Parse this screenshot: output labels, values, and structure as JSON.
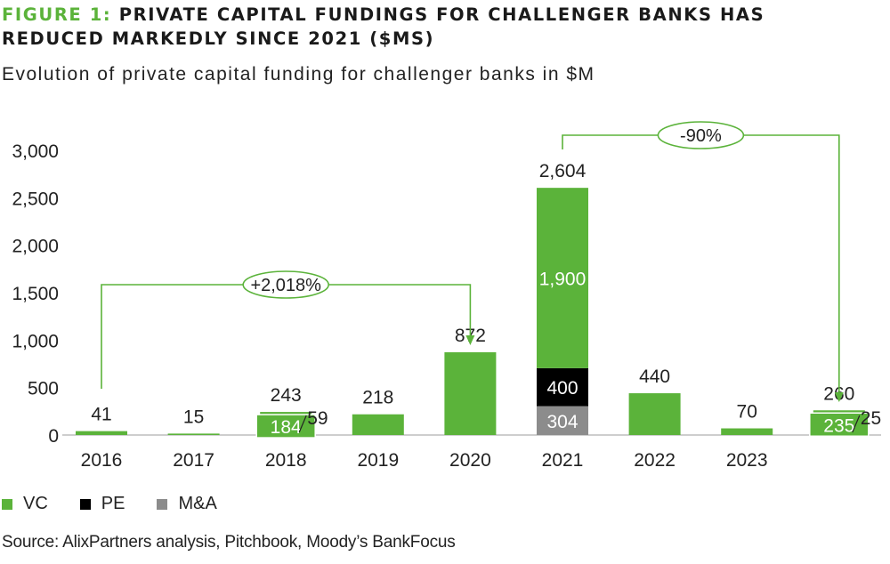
{
  "title": {
    "figure_label": "FIGURE 1:",
    "line1": "PRIVATE CAPITAL FUNDINGS FOR CHALLENGER BANKS HAS",
    "line2": "REDUCED MARKEDLY SINCE 2021 ($MS)"
  },
  "subtitle": "Evolution of private capital funding for challenger banks in $M",
  "source": "Source: AlixPartners analysis, Pitchbook, Moody’s BankFocus",
  "colors": {
    "vc": "#5bb33a",
    "pe": "#000000",
    "ma": "#8c8c8c",
    "accent": "#5bb33a"
  },
  "legend": [
    {
      "key": "vc",
      "label": "VC"
    },
    {
      "key": "pe",
      "label": "PE"
    },
    {
      "key": "ma",
      "label": "M&A"
    }
  ],
  "chart_data": {
    "type": "bar",
    "stacked": true,
    "categories": [
      "2016",
      "2017",
      "2018",
      "2019",
      "2020",
      "2021",
      "2022",
      "2023",
      ""
    ],
    "series": [
      {
        "name": "M&A",
        "key": "ma",
        "values": [
          0,
          0,
          0,
          0,
          0,
          304,
          0,
          0,
          0
        ]
      },
      {
        "name": "PE",
        "key": "pe",
        "values": [
          0,
          0,
          59,
          0,
          0,
          400,
          0,
          0,
          25
        ]
      },
      {
        "name": "VC",
        "key": "vc",
        "values": [
          41,
          15,
          184,
          218,
          872,
          1900,
          440,
          70,
          235
        ]
      }
    ],
    "totals": [
      41,
      15,
      243,
      218,
      872,
      2604,
      440,
      70,
      260
    ],
    "total_labels": [
      "41",
      "15",
      "243",
      "218",
      "872",
      "2,604",
      "440",
      "70",
      "260"
    ],
    "segment_labels": [
      {
        "category": "2018",
        "series": "VC",
        "text": "184"
      },
      {
        "category": "2018",
        "series": "PE",
        "text": "59"
      },
      {
        "category": "2021",
        "series": "VC",
        "text": "1,900"
      },
      {
        "category": "2021",
        "series": "PE",
        "text": "400"
      },
      {
        "category": "2021",
        "series": "M&A",
        "text": "304"
      },
      {
        "category": "",
        "series": "VC",
        "text": "235"
      },
      {
        "category": "",
        "series": "PE",
        "text": "25"
      }
    ],
    "ylim": [
      0,
      3000
    ],
    "yticks": [
      0,
      500,
      1000,
      1500,
      2000,
      2500,
      3000
    ],
    "ytick_labels": [
      "0",
      "500",
      "1,000",
      "1,500",
      "2,000",
      "2,500",
      "3,000"
    ],
    "annotations": [
      {
        "text": "+2,018%",
        "from": "2016",
        "to": "2020"
      },
      {
        "text": "-90%",
        "from": "2021",
        "to": ""
      }
    ],
    "grid": false,
    "legend_position": "bottom-left"
  }
}
